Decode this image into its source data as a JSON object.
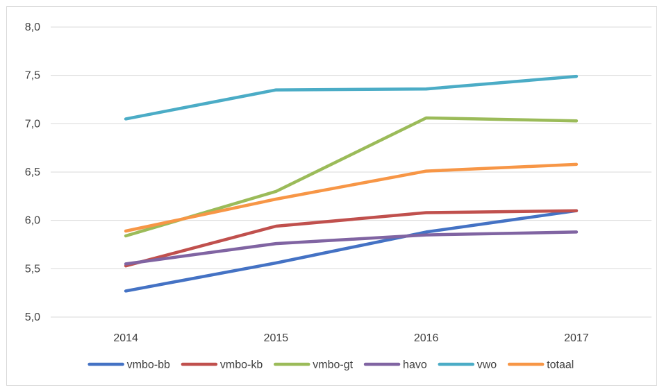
{
  "chart_data": {
    "type": "line",
    "categories": [
      "2014",
      "2015",
      "2016",
      "2017"
    ],
    "ylim": [
      5.0,
      8.0
    ],
    "yticks": [
      "5,0",
      "5,5",
      "6,0",
      "6,5",
      "7,0",
      "7,5",
      "8,0"
    ],
    "grid": true,
    "legend_position": "bottom",
    "series": [
      {
        "name": "vmbo-bb",
        "color": "#4472c4",
        "values": [
          5.27,
          5.56,
          5.88,
          6.1
        ]
      },
      {
        "name": "vmbo-kb",
        "color": "#c0504d",
        "values": [
          5.53,
          5.94,
          6.08,
          6.1
        ]
      },
      {
        "name": "vmbo-gt",
        "color": "#9bbb59",
        "values": [
          5.84,
          6.3,
          7.06,
          7.03
        ]
      },
      {
        "name": "havo",
        "color": "#8064a2",
        "values": [
          5.55,
          5.76,
          5.85,
          5.88
        ]
      },
      {
        "name": "vwo",
        "color": "#4bacc6",
        "values": [
          7.05,
          7.35,
          7.36,
          7.49
        ]
      },
      {
        "name": "totaal",
        "color": "#f79646",
        "values": [
          5.89,
          6.22,
          6.51,
          6.58
        ]
      }
    ]
  }
}
